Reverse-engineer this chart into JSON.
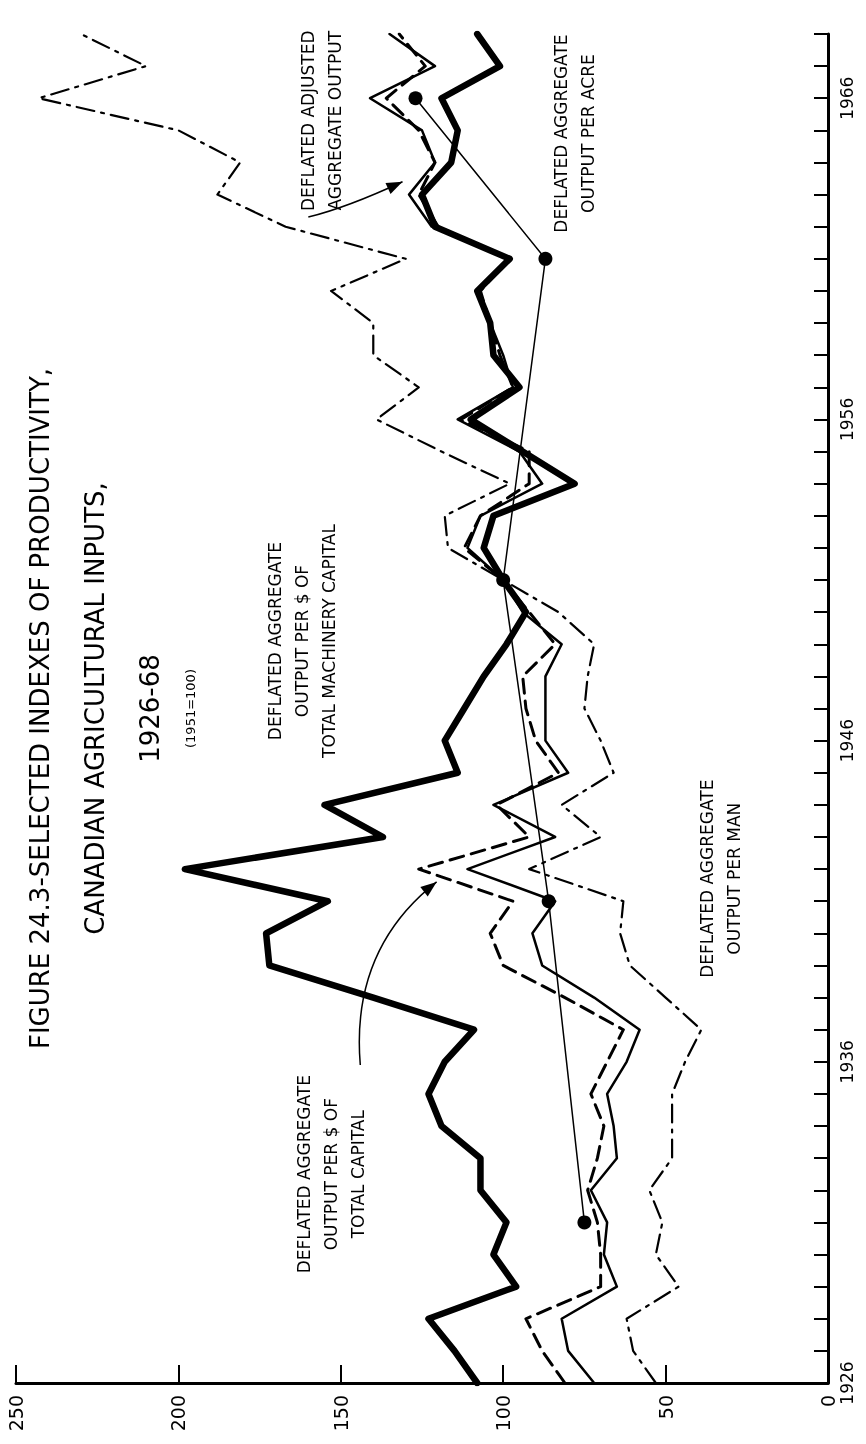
{
  "chart_data": {
    "type": "line",
    "title": "FIGURE 24.3-SELECTED INDEXES OF PRODUCTIVITY,\nCANADIAN AGRICULTURAL INPUTS,\n1926-68",
    "subtitle": "(1951=100)",
    "xlim": [
      250,
      0
    ],
    "xticks": [
      250,
      200,
      150,
      100,
      50,
      0
    ],
    "ylim": [
      1926,
      1968
    ],
    "yticks": [
      1926,
      {
        "value": 1927,
        "label": null
      },
      {
        "value": 1928,
        "label": null
      },
      {
        "value": 1929,
        "label": null
      },
      {
        "value": 1930,
        "label": null
      },
      {
        "value": 1931,
        "label": null
      },
      {
        "value": 1932,
        "label": null
      },
      {
        "value": 1933,
        "label": null
      },
      {
        "value": 1934,
        "label": null
      },
      {
        "value": 1935,
        "label": null
      },
      1936,
      {
        "value": 1937,
        "label": null
      },
      {
        "value": 1938,
        "label": null
      },
      {
        "value": 1939,
        "label": null
      },
      {
        "value": 1940,
        "label": null
      },
      {
        "value": 1941,
        "label": null
      },
      {
        "value": 1942,
        "label": null
      },
      {
        "value": 1943,
        "label": null
      },
      {
        "value": 1944,
        "label": null
      },
      {
        "value": 1945,
        "label": null
      },
      1946,
      {
        "value": 1947,
        "label": null
      },
      {
        "value": 1948,
        "label": null
      },
      {
        "value": 1949,
        "label": null
      },
      {
        "value": 1950,
        "label": null
      },
      {
        "value": 1951,
        "label": null
      },
      {
        "value": 1952,
        "label": null
      },
      {
        "value": 1953,
        "label": null
      },
      {
        "value": 1954,
        "label": null
      },
      {
        "value": 1955,
        "label": null
      },
      1956,
      {
        "value": 1957,
        "label": null
      },
      {
        "value": 1958,
        "label": null
      },
      {
        "value": 1959,
        "label": null
      },
      {
        "value": 1960,
        "label": null
      },
      {
        "value": 1961,
        "label": null
      },
      {
        "value": 1962,
        "label": null
      },
      {
        "value": 1963,
        "label": null
      },
      {
        "value": 1964,
        "label": null
      },
      {
        "value": 1965,
        "label": null
      },
      1966,
      {
        "value": 1967,
        "label": null
      },
      {
        "value": 1968,
        "label": null
      }
    ],
    "marker": "none",
    "series": [
      {
        "name": "DEFLATED AGGREGATE\nOUTPUT PER $ OF\nTOTAL MACHINERY CAPITAL",
        "color": "#000000",
        "line_style": "solid",
        "x": [
          108,
          115,
          123,
          96,
          103,
          99,
          107,
          107,
          119,
          123,
          118,
          109,
          140,
          172,
          173,
          154,
          198,
          137,
          155,
          114,
          118,
          112,
          106,
          99,
          93,
          100,
          106,
          103,
          78,
          94,
          110,
          95,
          103,
          104,
          108,
          98,
          121,
          125,
          116,
          114,
          119,
          101,
          108
        ],
        "values": [
          1926,
          1927,
          1928,
          1929,
          1930,
          1931,
          1932,
          1933,
          1934,
          1935,
          1936,
          1937,
          1938,
          1939,
          1940,
          1941,
          1942,
          1943,
          1944,
          1945,
          1946,
          1947,
          1948,
          1949,
          1950,
          1951,
          1952,
          1953,
          1954,
          1955,
          1956,
          1957,
          1958,
          1959,
          1960,
          1961,
          1962,
          1963,
          1964,
          1965,
          1966,
          1967,
          1968
        ]
      },
      {
        "name": "DEFLATED AGGREGATE\nOUTPUT PER $ OF\nTOTAL CAPITAL",
        "color": "#000000",
        "line_style": "dashed",
        "x": [
          81,
          88,
          93,
          70,
          70,
          71,
          74,
          71,
          69,
          73,
          68,
          63,
          81,
          100,
          104,
          97,
          126,
          92,
          102,
          83,
          90,
          93,
          94,
          84,
          92,
          100,
          112,
          107,
          92,
          92,
          113,
          97,
          101,
          104,
          107,
          98,
          120,
          126,
          121,
          126,
          136,
          124,
          132
        ],
        "values": [
          1926,
          1927,
          1928,
          1929,
          1930,
          1931,
          1932,
          1933,
          1934,
          1935,
          1936,
          1937,
          1938,
          1939,
          1940,
          1941,
          1942,
          1943,
          1944,
          1945,
          1946,
          1947,
          1948,
          1949,
          1950,
          1951,
          1952,
          1953,
          1954,
          1955,
          1956,
          1957,
          1958,
          1959,
          1960,
          1961,
          1962,
          1963,
          1964,
          1965,
          1966,
          1967,
          1968
        ]
      },
      {
        "name": "DEFLATED ADJUSTED\nAGGREGATE OUTPUT",
        "color": "#000000",
        "line_style": "solid",
        "x": [
          72,
          80,
          82,
          65,
          69,
          68,
          73,
          65,
          66,
          68,
          62,
          58,
          72,
          88,
          91,
          84,
          111,
          84,
          103,
          80,
          87,
          87,
          87,
          82,
          94,
          100,
          111,
          107,
          88,
          95,
          114,
          97,
          100,
          104,
          108,
          98,
          122,
          129,
          121,
          125,
          141,
          121,
          135
        ],
        "values": [
          1926,
          1927,
          1928,
          1929,
          1930,
          1931,
          1932,
          1933,
          1934,
          1935,
          1936,
          1937,
          1938,
          1939,
          1940,
          1941,
          1942,
          1943,
          1944,
          1945,
          1946,
          1947,
          1948,
          1949,
          1950,
          1951,
          1952,
          1953,
          1954,
          1955,
          1956,
          1957,
          1958,
          1959,
          1960,
          1961,
          1962,
          1963,
          1964,
          1965,
          1966,
          1967,
          1968
        ]
      },
      {
        "name": "DEFLATED AGGREGATE\nOUTPUT PER MAN",
        "color": "#000000",
        "line_style": "dashdot",
        "x": [
          53,
          60,
          62,
          46,
          53,
          51,
          55,
          48,
          48,
          48,
          44,
          39,
          50,
          61,
          64,
          63,
          92,
          70,
          82,
          66,
          70,
          75,
          74,
          72,
          83,
          100,
          117,
          118,
          98,
          119,
          139,
          126,
          140,
          140,
          153,
          130,
          167,
          188,
          181,
          200,
          243,
          210,
          230
        ],
        "values": [
          1926,
          1927,
          1928,
          1929,
          1930,
          1931,
          1932,
          1933,
          1934,
          1935,
          1936,
          1937,
          1938,
          1939,
          1940,
          1941,
          1942,
          1943,
          1944,
          1945,
          1946,
          1947,
          1948,
          1949,
          1950,
          1951,
          1952,
          1953,
          1954,
          1955,
          1956,
          1957,
          1958,
          1959,
          1960,
          1961,
          1962,
          1963,
          1964,
          1965,
          1966,
          1967,
          1968
        ]
      },
      {
        "name": "DEFLATED AGGREGATE\nOUTPUT PER ACRE",
        "color": "#000000",
        "line_style": "solid",
        "marker": "circle",
        "x": [
          75,
          86,
          100,
          87,
          127
        ],
        "values": [
          1931,
          1941,
          1951,
          1961,
          1966
        ]
      }
    ]
  }
}
